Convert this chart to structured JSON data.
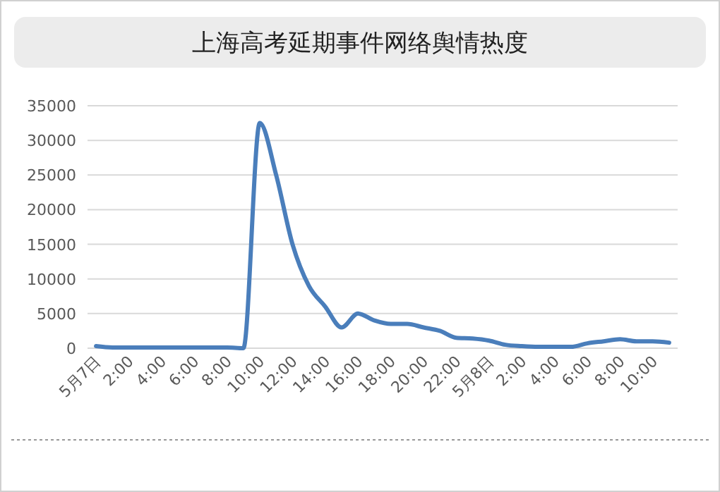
{
  "chart_data": {
    "type": "line",
    "title": "上海高考延期事件网络舆情热度",
    "categories": [
      "5月7日",
      null,
      "2:00",
      null,
      "4:00",
      null,
      "6:00",
      null,
      "8:00",
      null,
      "10:00",
      null,
      "12:00",
      null,
      "14:00",
      null,
      "16:00",
      null,
      "18:00",
      null,
      "20:00",
      null,
      "22:00",
      null,
      "5月8日",
      null,
      "2:00",
      null,
      "4:00",
      null,
      "6:00",
      null,
      "8:00",
      null,
      "10:00",
      null
    ],
    "series": [
      {
        "color": "#4a7ebb",
        "values": [
          300,
          100,
          100,
          100,
          100,
          100,
          100,
          100,
          100,
          0,
          32500,
          25000,
          15000,
          9000,
          6000,
          3000,
          5000,
          4000,
          3500,
          3500,
          3000,
          2500,
          1500,
          1400,
          1100,
          500,
          300,
          200,
          200,
          200,
          700,
          1000,
          1300,
          1000,
          1000,
          800
        ]
      }
    ],
    "ylim": [
      0,
      35000
    ],
    "yticks": [
      0,
      5000,
      10000,
      15000,
      20000,
      25000,
      30000,
      35000
    ],
    "grid": "y",
    "marker": "none",
    "line_style": "solid"
  }
}
